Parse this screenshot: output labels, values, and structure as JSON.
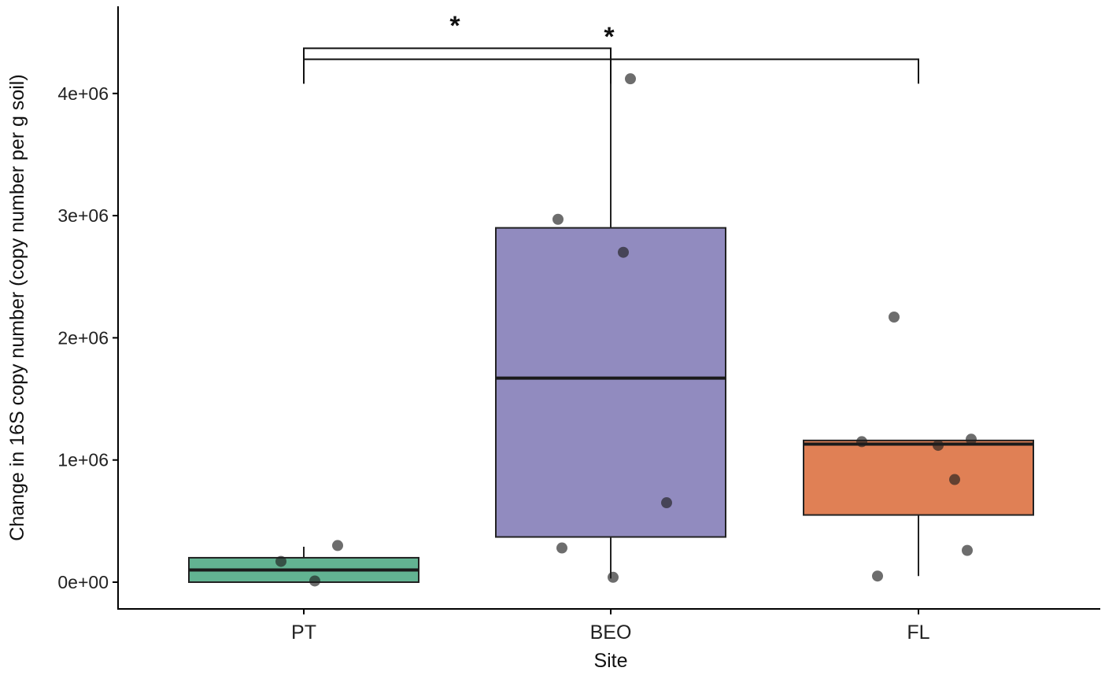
{
  "chart_data": {
    "type": "boxplot",
    "title": "",
    "xlabel": "Site",
    "ylabel": "Change in 16S copy number (copy number per g soil)",
    "ylim": [
      -220000,
      4750000
    ],
    "yticks": [
      0,
      1000000,
      2000000,
      3000000,
      4000000
    ],
    "ytick_labels": [
      "0e+00",
      "1e+06",
      "2e+06",
      "3e+06",
      "4e+06"
    ],
    "grid": false,
    "categories": [
      "PT",
      "BEO",
      "FL"
    ],
    "boxes": [
      {
        "category": "PT",
        "color": "#62b392",
        "q1": 0,
        "median": 100000,
        "q3": 200000,
        "whisker_low": 0,
        "whisker_high": 290000,
        "points": [
          170000,
          10000,
          300000
        ]
      },
      {
        "category": "BEO",
        "color": "#918bbf",
        "q1": 370000,
        "median": 1670000,
        "q3": 2900000,
        "whisker_low": 30000,
        "whisker_high": 4120000,
        "points": [
          4120000,
          2970000,
          2700000,
          650000,
          280000,
          40000
        ]
      },
      {
        "category": "FL",
        "color": "#e08055",
        "q1": 550000,
        "median": 1130000,
        "q3": 1160000,
        "whisker_low": 50000,
        "whisker_high": 1160000,
        "points": [
          2170000,
          1150000,
          1120000,
          1170000,
          840000,
          260000,
          50000
        ]
      }
    ],
    "significance": [
      {
        "groups": [
          "PT",
          "BEO"
        ],
        "label": "*",
        "y": 4370000
      },
      {
        "groups": [
          "PT",
          "FL"
        ],
        "label": "*",
        "y": 4280000
      }
    ]
  }
}
